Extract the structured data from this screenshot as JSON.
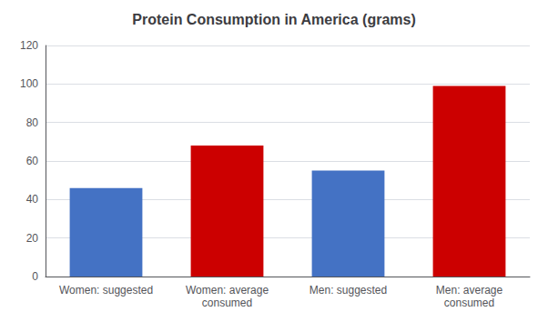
{
  "chart_data": {
    "type": "bar",
    "title": "Protein Consumption in America (grams)",
    "categories": [
      "Women: suggested",
      "Women: average\nconsumed",
      "Men: suggested",
      "Men: average\nconsumed"
    ],
    "values": [
      46,
      68,
      55,
      99
    ],
    "colors": [
      "#4472C4",
      "#CC0000",
      "#4472C4",
      "#CC0000"
    ],
    "ylim": [
      0,
      120
    ],
    "yticks": [
      0,
      20,
      40,
      60,
      80,
      100,
      120
    ],
    "grid": true
  }
}
